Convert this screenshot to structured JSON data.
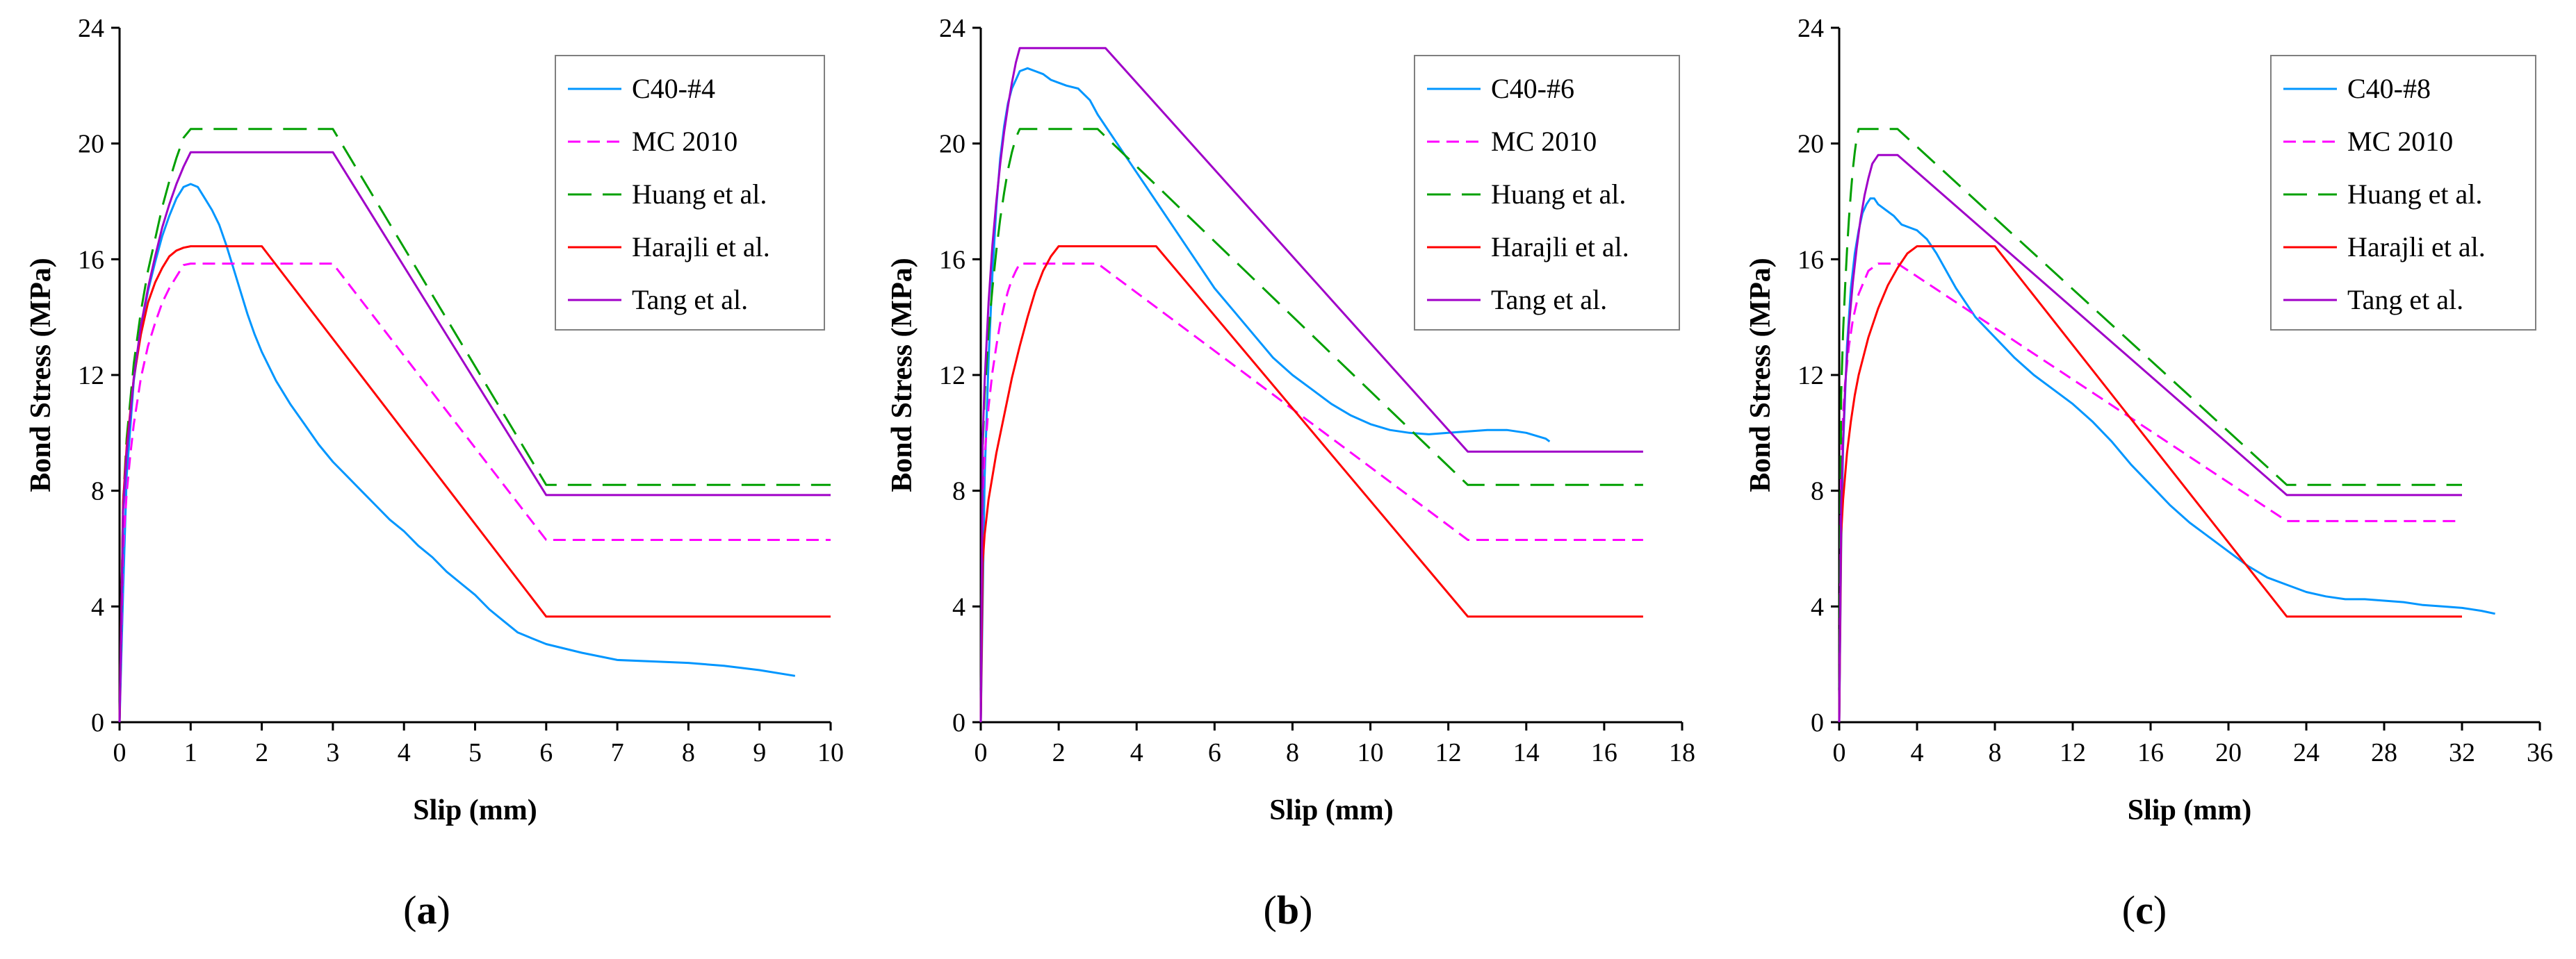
{
  "chart_data": [
    {
      "type": "line",
      "panel_label": "a",
      "xlabel": "Slip (mm)",
      "ylabel": "Bond Stress (MPa)",
      "xlim": [
        0,
        10
      ],
      "ylim": [
        0,
        24
      ],
      "xticks": [
        0,
        1,
        2,
        3,
        4,
        5,
        6,
        7,
        8,
        9,
        10
      ],
      "yticks": [
        0,
        4,
        8,
        12,
        16,
        20,
        24
      ],
      "legend_position": "top-right",
      "series": [
        {
          "name": "C40-#4",
          "color": "#0096ff",
          "dash": "solid",
          "x": [
            0,
            0.05,
            0.1,
            0.2,
            0.3,
            0.4,
            0.5,
            0.6,
            0.7,
            0.8,
            0.9,
            1.0,
            1.1,
            1.2,
            1.3,
            1.4,
            1.5,
            1.6,
            1.7,
            1.8,
            1.9,
            2.0,
            2.2,
            2.4,
            2.6,
            2.8,
            3.0,
            3.2,
            3.4,
            3.6,
            3.8,
            4.0,
            4.2,
            4.4,
            4.6,
            4.8,
            5.0,
            5.2,
            5.4,
            5.6,
            5.8,
            6.0,
            6.5,
            7.0,
            7.5,
            8.0,
            8.5,
            9.0,
            9.5
          ],
          "y": [
            0,
            4.5,
            8.5,
            11.8,
            13.6,
            14.9,
            15.9,
            16.8,
            17.5,
            18.1,
            18.5,
            18.6,
            18.5,
            18.1,
            17.7,
            17.2,
            16.5,
            15.7,
            14.9,
            14.1,
            13.4,
            12.8,
            11.8,
            11.0,
            10.3,
            9.6,
            9.0,
            8.5,
            8.0,
            7.5,
            7.0,
            6.6,
            6.1,
            5.7,
            5.2,
            4.8,
            4.4,
            3.9,
            3.5,
            3.1,
            2.9,
            2.7,
            2.4,
            2.15,
            2.1,
            2.05,
            1.95,
            1.8,
            1.6
          ]
        },
        {
          "name": "MC 2010",
          "color": "#ff00ff",
          "dash": "dashed",
          "x": [
            0,
            0.05,
            0.1,
            0.15,
            0.2,
            0.3,
            0.4,
            0.5,
            0.6,
            0.7,
            0.8,
            0.9,
            1.0,
            3.0,
            6.0,
            10.0
          ],
          "y": [
            0,
            6.0,
            7.9,
            9.2,
            10.3,
            11.9,
            13.0,
            13.8,
            14.5,
            15.0,
            15.4,
            15.8,
            15.85,
            15.85,
            6.3,
            6.3
          ]
        },
        {
          "name": "Huang et al.",
          "color": "#00a000",
          "dash": "longdash",
          "x": [
            0,
            0.05,
            0.1,
            0.2,
            0.3,
            0.4,
            0.5,
            0.6,
            0.7,
            0.8,
            0.9,
            1.0,
            3.0,
            6.0,
            10.0
          ],
          "y": [
            0,
            7.6,
            9.8,
            12.4,
            14.2,
            15.6,
            16.7,
            17.8,
            18.7,
            19.5,
            20.2,
            20.5,
            20.5,
            8.2,
            8.2
          ]
        },
        {
          "name": "Harajli et al.",
          "color": "#ff0000",
          "dash": "solid",
          "x": [
            0,
            0.05,
            0.1,
            0.2,
            0.3,
            0.4,
            0.5,
            0.6,
            0.7,
            0.8,
            0.9,
            1.0,
            2.0,
            6.0,
            10.0
          ],
          "y": [
            0,
            7.6,
            9.5,
            11.9,
            13.4,
            14.5,
            15.2,
            15.7,
            16.1,
            16.3,
            16.4,
            16.45,
            16.45,
            3.65,
            3.65
          ]
        },
        {
          "name": "Tang et al.",
          "color": "#a000c8",
          "dash": "solid",
          "x": [
            0,
            0.05,
            0.1,
            0.2,
            0.3,
            0.4,
            0.5,
            0.6,
            0.7,
            0.8,
            0.9,
            1.0,
            3.0,
            6.0,
            10.0
          ],
          "y": [
            0,
            7.3,
            9.3,
            11.9,
            13.7,
            15.0,
            16.1,
            17.1,
            17.9,
            18.6,
            19.2,
            19.7,
            19.7,
            7.85,
            7.85
          ]
        }
      ]
    },
    {
      "type": "line",
      "panel_label": "b",
      "xlabel": "Slip (mm)",
      "ylabel": "Bond Stress (MPa)",
      "xlim": [
        0,
        18
      ],
      "ylim": [
        0,
        24
      ],
      "xticks": [
        0,
        2,
        4,
        6,
        8,
        10,
        12,
        14,
        16,
        18
      ],
      "yticks": [
        0,
        4,
        8,
        12,
        16,
        20,
        24
      ],
      "legend_position": "top-right",
      "series": [
        {
          "name": "C40-#6",
          "color": "#0096ff",
          "dash": "solid",
          "x": [
            0,
            0.1,
            0.2,
            0.3,
            0.4,
            0.5,
            0.6,
            0.7,
            0.8,
            0.9,
            1.0,
            1.2,
            1.4,
            1.6,
            1.8,
            2.0,
            2.2,
            2.5,
            2.8,
            3.0,
            3.5,
            4.0,
            4.5,
            5.0,
            5.5,
            6.0,
            6.5,
            7.0,
            7.5,
            8.0,
            8.5,
            9.0,
            9.5,
            10.0,
            10.5,
            11.0,
            11.5,
            12.0,
            12.5,
            13.0,
            13.5,
            14.0,
            14.5,
            14.6
          ],
          "y": [
            0,
            8.5,
            12.5,
            15.5,
            17.8,
            19.5,
            20.6,
            21.4,
            21.9,
            22.2,
            22.5,
            22.6,
            22.5,
            22.4,
            22.2,
            22.1,
            22.0,
            21.9,
            21.5,
            21.0,
            20.0,
            19.0,
            18.0,
            17.0,
            16.0,
            15.0,
            14.2,
            13.4,
            12.6,
            12.0,
            11.5,
            11.0,
            10.6,
            10.3,
            10.1,
            10.0,
            9.95,
            10.0,
            10.05,
            10.1,
            10.1,
            10.0,
            9.8,
            9.7
          ]
        },
        {
          "name": "MC 2010",
          "color": "#ff00ff",
          "dash": "dashed",
          "x": [
            0,
            0.05,
            0.1,
            0.2,
            0.3,
            0.4,
            0.5,
            0.6,
            0.7,
            0.8,
            0.9,
            1.0,
            3.0,
            12.5,
            17.0
          ],
          "y": [
            0,
            7.9,
            9.2,
            10.9,
            12.1,
            13.0,
            13.8,
            14.4,
            14.9,
            15.3,
            15.6,
            15.85,
            15.85,
            6.3,
            6.3
          ]
        },
        {
          "name": "Huang et al.",
          "color": "#00a000",
          "dash": "longdash",
          "x": [
            0,
            0.05,
            0.1,
            0.2,
            0.3,
            0.4,
            0.5,
            0.6,
            0.7,
            0.8,
            0.9,
            1.0,
            3.0,
            12.5,
            17.0
          ],
          "y": [
            0,
            9.5,
            11.3,
            13.5,
            15.0,
            16.3,
            17.4,
            18.3,
            19.1,
            19.7,
            20.2,
            20.5,
            20.5,
            8.2,
            8.2
          ]
        },
        {
          "name": "Harajli et al.",
          "color": "#ff0000",
          "dash": "solid",
          "x": [
            0,
            0.05,
            0.1,
            0.2,
            0.4,
            0.6,
            0.8,
            1.0,
            1.2,
            1.4,
            1.6,
            1.8,
            2.0,
            4.5,
            12.5,
            17.0
          ],
          "y": [
            0,
            5.5,
            6.5,
            7.7,
            9.3,
            10.6,
            11.9,
            13.0,
            14.0,
            14.9,
            15.6,
            16.1,
            16.45,
            16.45,
            3.65,
            3.65
          ]
        },
        {
          "name": "Tang et al.",
          "color": "#a000c8",
          "dash": "solid",
          "x": [
            0,
            0.05,
            0.1,
            0.2,
            0.3,
            0.4,
            0.5,
            0.6,
            0.7,
            0.8,
            0.9,
            1.0,
            3.2,
            12.5,
            17.0
          ],
          "y": [
            0,
            9.8,
            11.8,
            14.5,
            16.5,
            18.0,
            19.3,
            20.4,
            21.3,
            22.1,
            22.8,
            23.3,
            23.3,
            9.35,
            9.35
          ]
        }
      ]
    },
    {
      "type": "line",
      "panel_label": "c",
      "xlabel": "Slip (mm)",
      "ylabel": "Bond Stress (MPa)",
      "xlim": [
        0,
        36
      ],
      "ylim": [
        0,
        24
      ],
      "xticks": [
        0,
        4,
        8,
        12,
        16,
        20,
        24,
        28,
        32,
        36
      ],
      "yticks": [
        0,
        4,
        8,
        12,
        16,
        20,
        24
      ],
      "legend_position": "top-right",
      "series": [
        {
          "name": "C40-#8",
          "color": "#0096ff",
          "dash": "solid",
          "x": [
            0,
            0.1,
            0.2,
            0.4,
            0.6,
            0.8,
            1.0,
            1.2,
            1.4,
            1.6,
            1.8,
            2.0,
            2.4,
            2.8,
            3.2,
            3.6,
            4.0,
            4.5,
            5.0,
            6.0,
            7.0,
            8.0,
            9.0,
            10.0,
            11.0,
            12.0,
            13.0,
            14.0,
            15.0,
            16.0,
            17.0,
            18.0,
            19.0,
            20.0,
            21.0,
            22.0,
            23.0,
            24.0,
            25.0,
            26.0,
            27.0,
            28.0,
            29.0,
            30.0,
            31.0,
            32.0,
            33.0,
            33.7
          ],
          "y": [
            0,
            6.0,
            9.5,
            13.0,
            15.0,
            16.2,
            17.0,
            17.6,
            17.9,
            18.1,
            18.1,
            17.9,
            17.7,
            17.5,
            17.2,
            17.1,
            17.0,
            16.7,
            16.2,
            15.0,
            14.0,
            13.3,
            12.6,
            12.0,
            11.5,
            11.0,
            10.4,
            9.7,
            8.9,
            8.2,
            7.5,
            6.9,
            6.4,
            5.9,
            5.4,
            5.0,
            4.75,
            4.5,
            4.35,
            4.25,
            4.25,
            4.2,
            4.15,
            4.05,
            4.0,
            3.95,
            3.85,
            3.75
          ]
        },
        {
          "name": "MC 2010",
          "color": "#ff00ff",
          "dash": "dashed",
          "x": [
            0,
            0.1,
            0.2,
            0.3,
            0.5,
            0.7,
            1.0,
            1.5,
            2.0,
            3.0,
            23.0,
            32.0
          ],
          "y": [
            0,
            9.0,
            10.6,
            11.7,
            13.0,
            13.9,
            14.8,
            15.6,
            15.85,
            15.85,
            6.95,
            6.95
          ]
        },
        {
          "name": "Huang et al.",
          "color": "#00a000",
          "dash": "longdash",
          "x": [
            0,
            0.1,
            0.2,
            0.3,
            0.4,
            0.5,
            0.6,
            0.7,
            0.8,
            0.9,
            1.0,
            3.0,
            23.0,
            32.0
          ],
          "y": [
            0,
            11.3,
            13.5,
            15.0,
            16.3,
            17.4,
            18.3,
            19.1,
            19.7,
            20.2,
            20.5,
            20.5,
            8.2,
            8.2
          ]
        },
        {
          "name": "Harajli et al.",
          "color": "#ff0000",
          "dash": "solid",
          "x": [
            0,
            0.1,
            0.2,
            0.4,
            0.6,
            0.8,
            1.0,
            1.5,
            2.0,
            2.5,
            3.0,
            3.5,
            4.0,
            8.0,
            23.0,
            32.0
          ],
          "y": [
            0,
            6.5,
            7.7,
            9.3,
            10.4,
            11.3,
            12.0,
            13.3,
            14.3,
            15.1,
            15.7,
            16.2,
            16.45,
            16.45,
            3.65,
            3.65
          ]
        },
        {
          "name": "Tang et al.",
          "color": "#a000c8",
          "dash": "solid",
          "x": [
            0,
            0.1,
            0.2,
            0.3,
            0.5,
            0.7,
            0.9,
            1.1,
            1.3,
            1.5,
            1.7,
            2.0,
            3.0,
            23.0,
            32.0
          ],
          "y": [
            0,
            7.5,
            9.8,
            11.5,
            13.7,
            15.2,
            16.4,
            17.4,
            18.2,
            18.8,
            19.3,
            19.6,
            19.6,
            7.85,
            7.85
          ]
        }
      ]
    }
  ]
}
